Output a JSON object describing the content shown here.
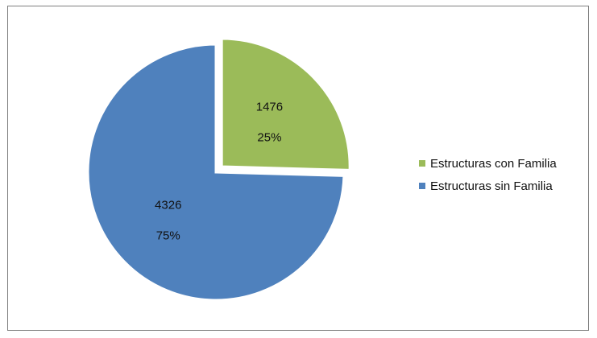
{
  "chart_data": {
    "type": "pie",
    "title": "",
    "slices": [
      {
        "name": "Estructuras con Familia",
        "value": 1476,
        "value_label": "1476",
        "percent_label": "25%",
        "color": "#9BBB59",
        "exploded": true
      },
      {
        "name": "Estructuras sin Familia",
        "value": 4326,
        "value_label": "4326",
        "percent_label": "75%",
        "color": "#4F81BD",
        "exploded": false
      }
    ],
    "legend_position": "right",
    "start_angle": "top, clockwise"
  }
}
